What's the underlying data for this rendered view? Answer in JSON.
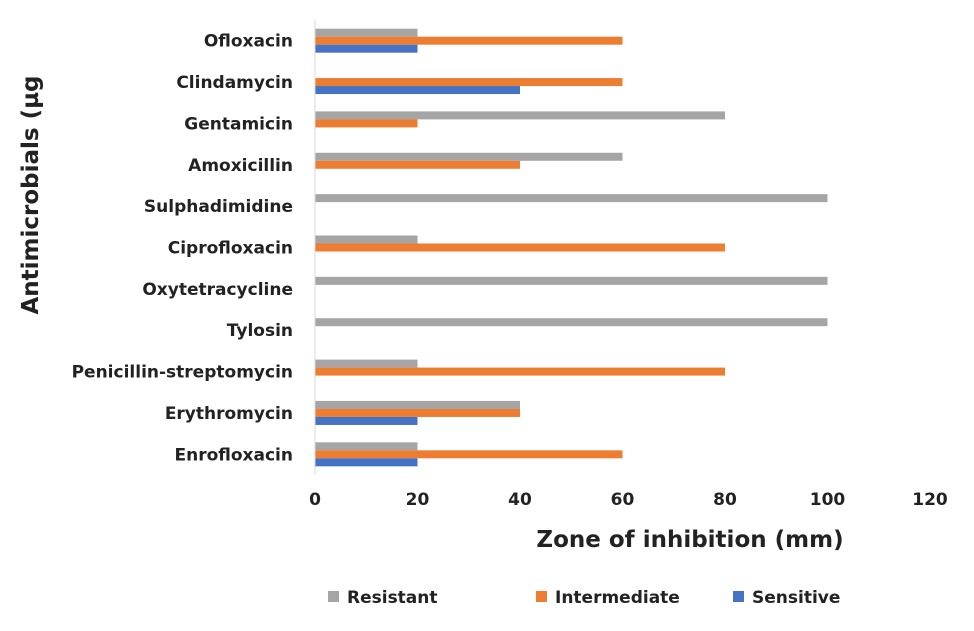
{
  "chart_data": {
    "type": "bar",
    "orientation": "horizontal",
    "title": "",
    "xlabel": "Zone of inhibition (mm)",
    "ylabel": "Antimicrobials (µg",
    "xlim": [
      0,
      120
    ],
    "xticks": [
      0,
      20,
      40,
      60,
      80,
      100,
      120
    ],
    "grid": false,
    "legend_position": "bottom",
    "categories": [
      "Ofloxacin",
      "Clindamycin",
      "Gentamicin",
      "Amoxicillin",
      "Sulphadimidine",
      "Ciprofloxacin",
      "Oxytetracycline",
      "Tylosin",
      "Penicillin-streptomycin",
      "Erythromycin",
      "Enrofloxacin"
    ],
    "series": [
      {
        "name": "Resistant",
        "color": "#a5a5a5",
        "values": [
          20,
          0,
          80,
          60,
          100,
          20,
          100,
          100,
          20,
          40,
          20
        ]
      },
      {
        "name": "Intermediate",
        "color": "#ed7d31",
        "values": [
          60,
          60,
          20,
          40,
          0,
          80,
          0,
          0,
          80,
          40,
          60
        ]
      },
      {
        "name": "Sensitive",
        "color": "#4472c4",
        "values": [
          20,
          40,
          0,
          0,
          0,
          0,
          0,
          0,
          0,
          20,
          20
        ]
      }
    ]
  }
}
